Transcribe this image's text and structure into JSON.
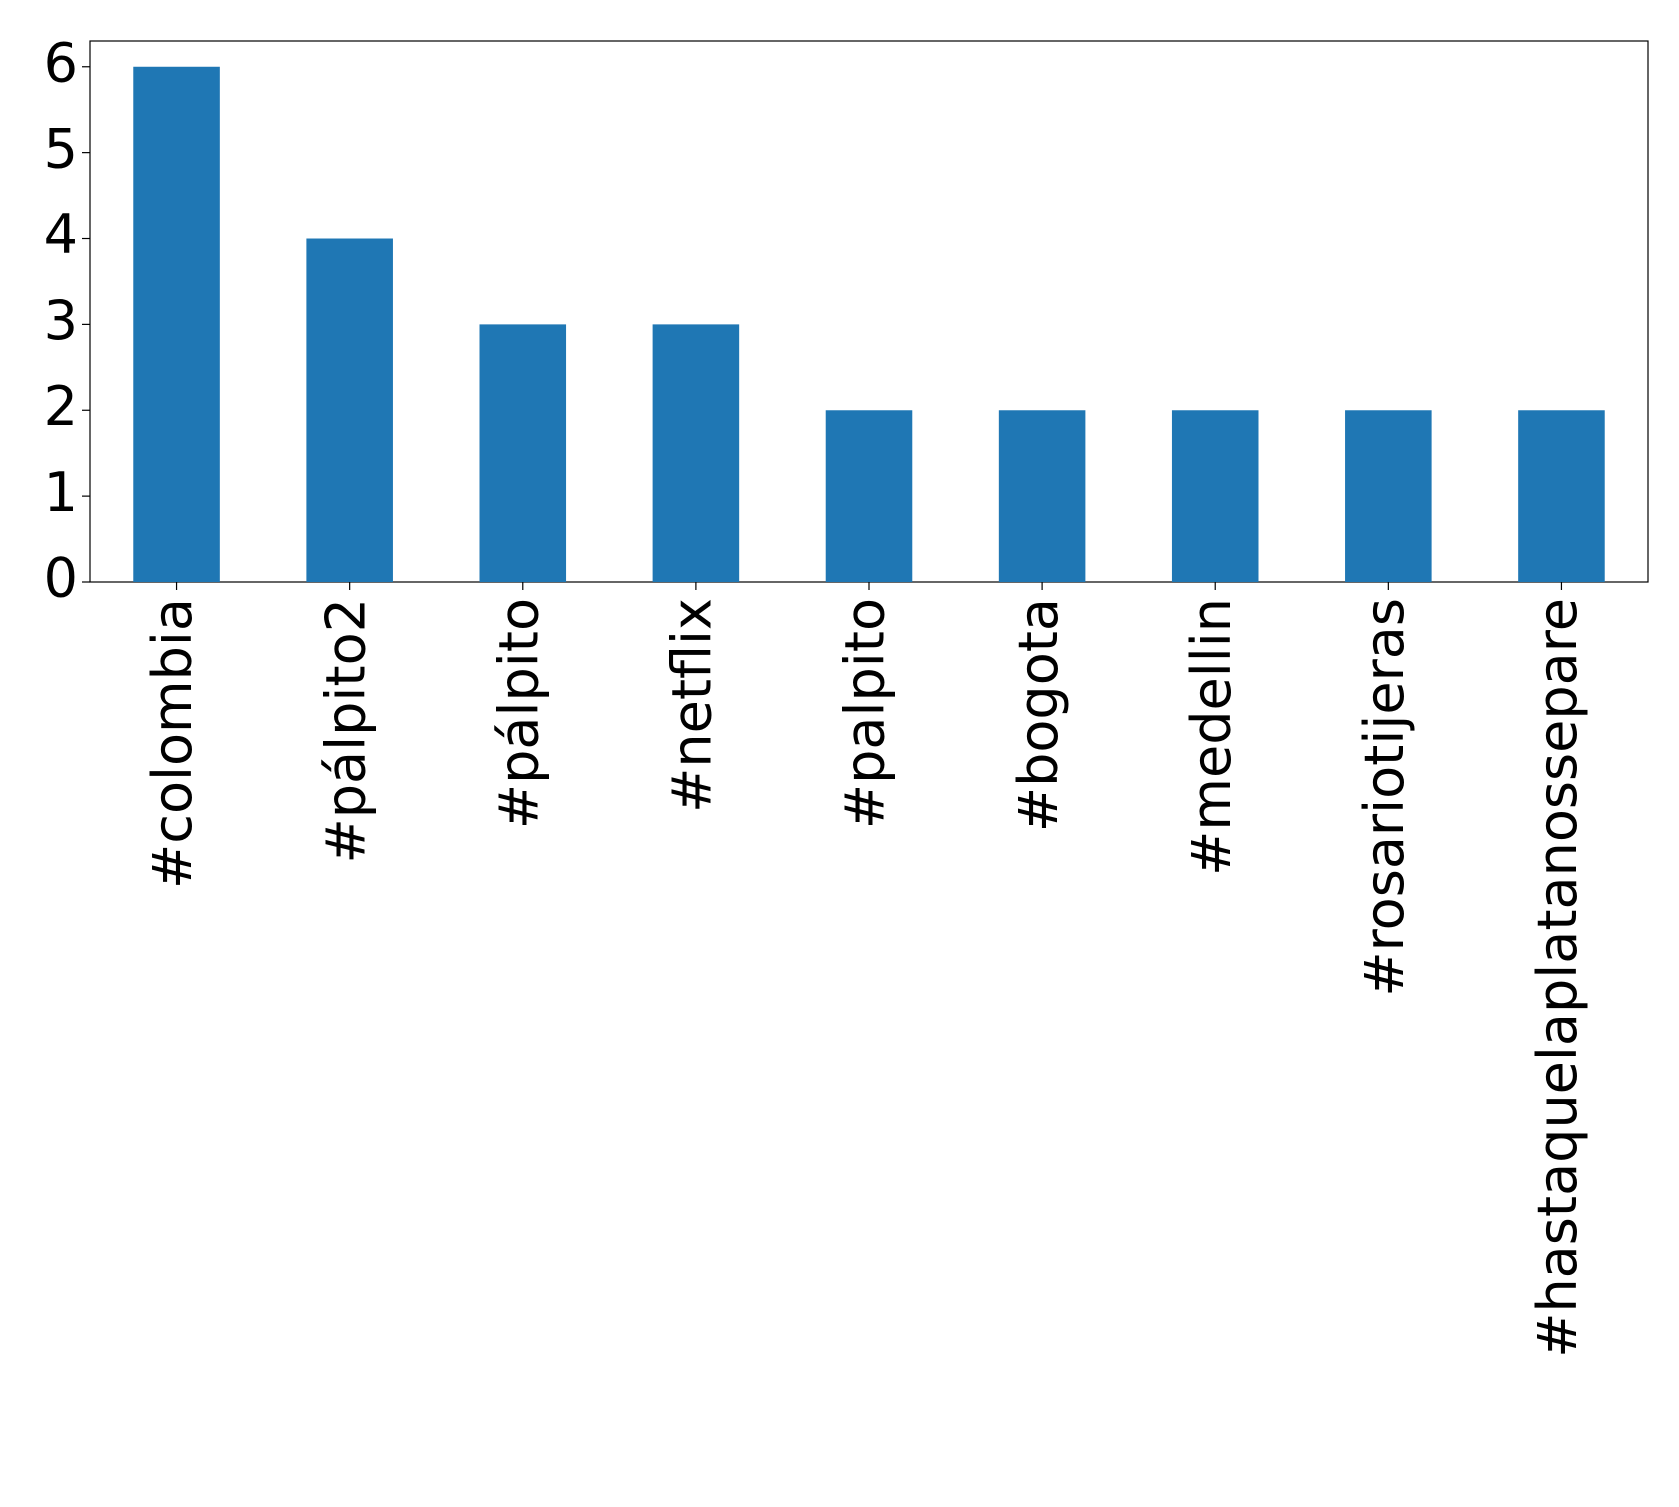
{
  "chart_data": {
    "type": "bar",
    "categories": [
      "#colombia",
      "#pálpito2",
      "#pálpito",
      "#netflix",
      "#palpito",
      "#bogota",
      "#medellin",
      "#rosariotijeras",
      "#hastaquelaplatanossepare"
    ],
    "values": [
      6,
      4,
      3,
      3,
      2,
      2,
      2,
      2,
      2
    ],
    "color": "#1f77b4",
    "ylim": [
      0,
      6.3
    ],
    "yticks": [
      0,
      1,
      2,
      3,
      4,
      5,
      6
    ]
  }
}
